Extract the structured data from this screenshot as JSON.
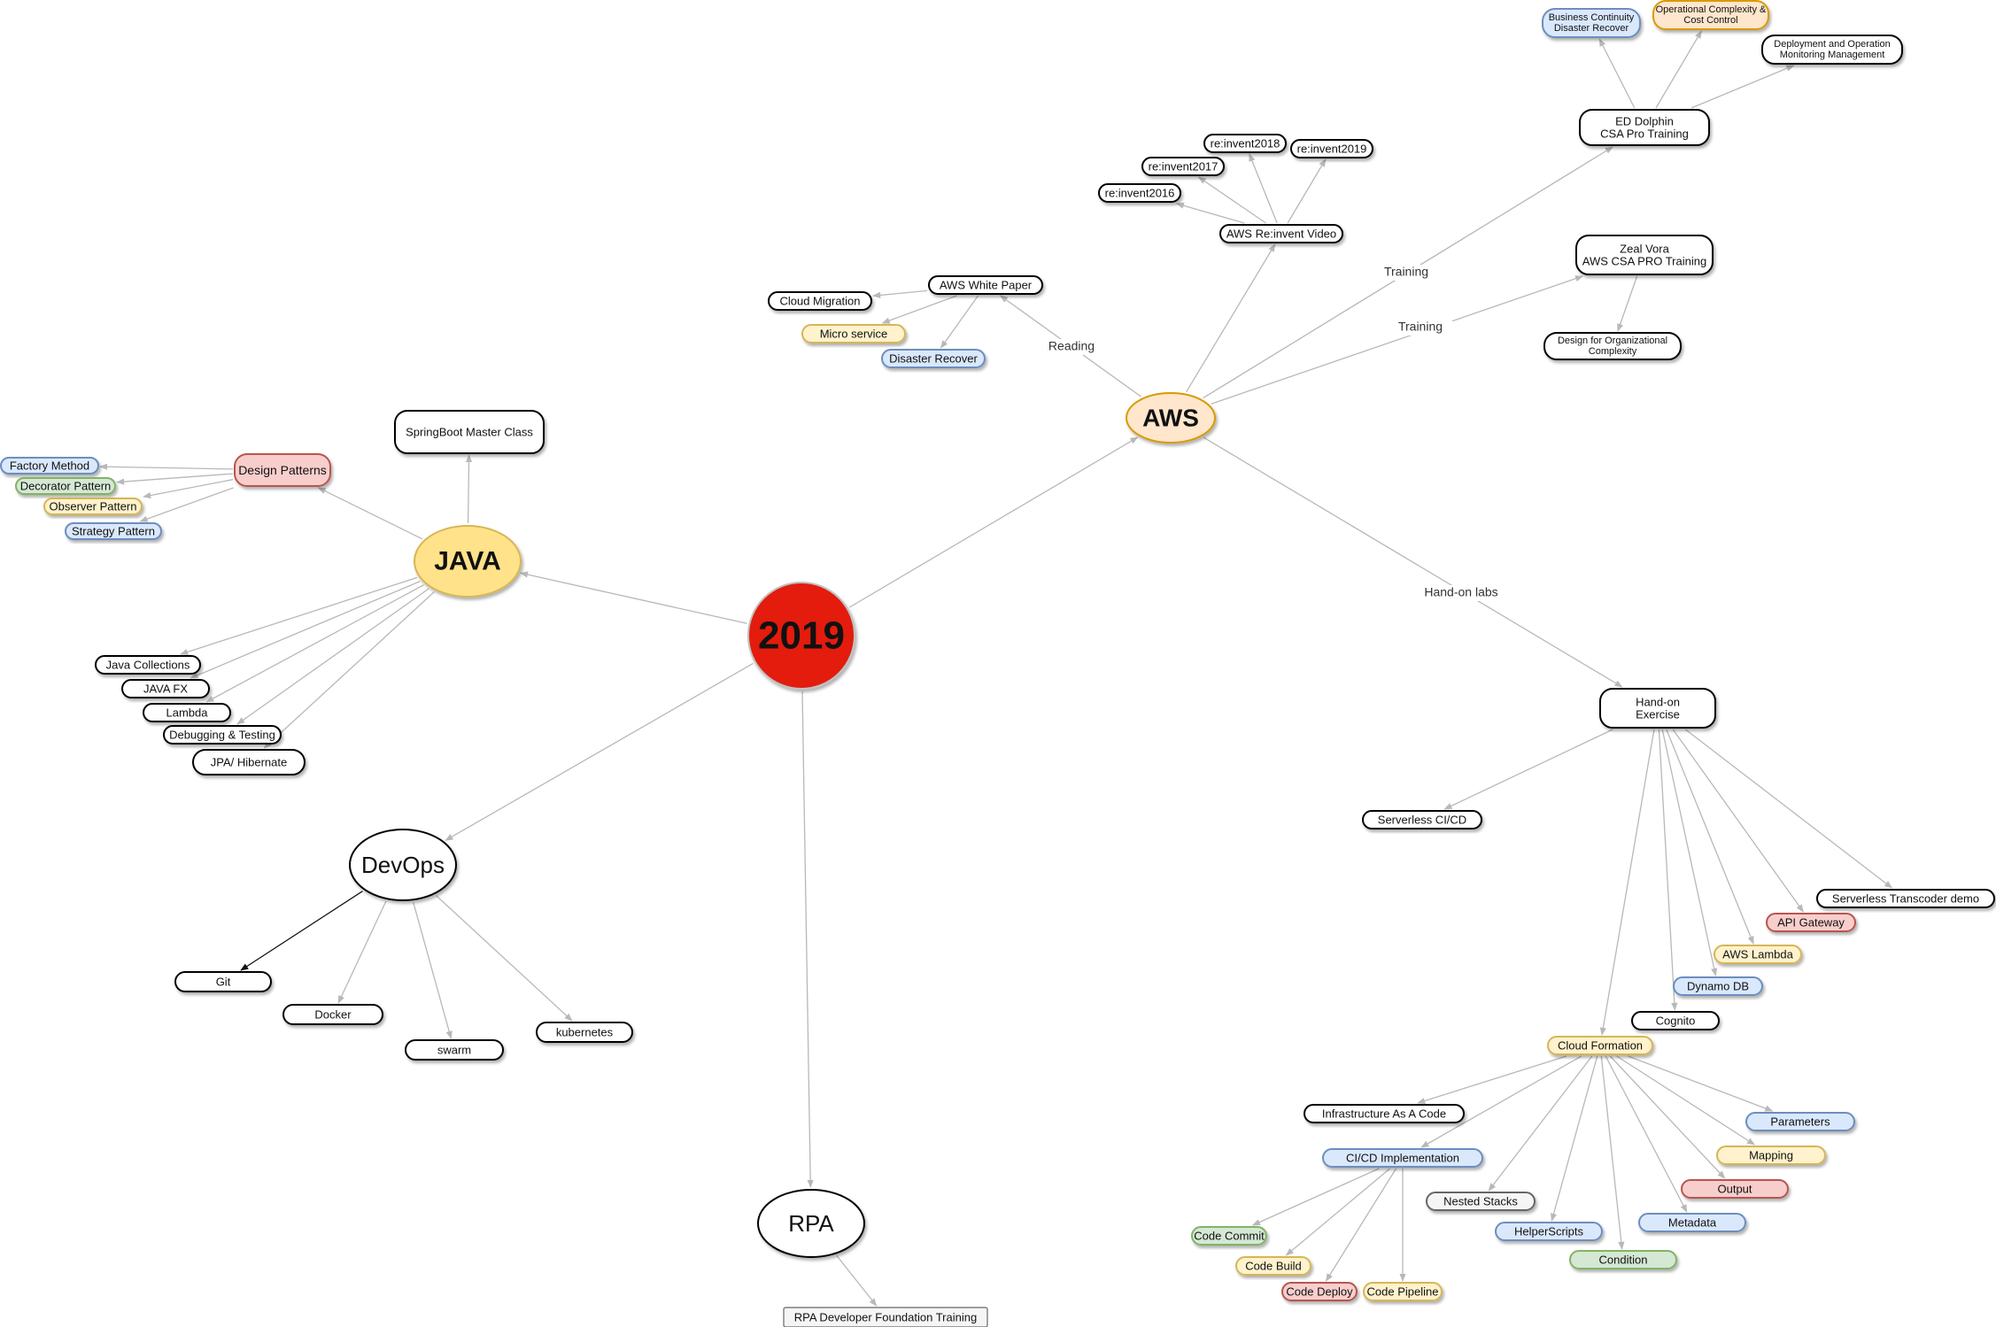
{
  "styles": {
    "plain": {
      "fill": "#ffffff",
      "stroke": "#000000"
    },
    "blue": {
      "fill": "#dae8fc",
      "stroke": "#6c8ebf"
    },
    "yellow": {
      "fill": "#fff2cc",
      "stroke": "#d6b656"
    },
    "green": {
      "fill": "#d5e8d4",
      "stroke": "#82b366"
    },
    "red": {
      "fill": "#f8cecc",
      "stroke": "#b85450"
    },
    "orange": {
      "fill": "#ffe6cc",
      "stroke": "#d79b00"
    },
    "grey": {
      "fill": "#f5f5f5",
      "stroke": "#666666"
    },
    "java": {
      "fill": "#ffe28a",
      "stroke": "#d6b656"
    },
    "center": {
      "fill": "#e31a0f",
      "stroke": "#c0c0c0",
      "text": "#ffffff"
    }
  },
  "nodes": [
    {
      "id": "y2019",
      "label": "2019",
      "style": "center"
    },
    {
      "id": "java",
      "label": "JAVA",
      "style": "java"
    },
    {
      "id": "aws",
      "label": "AWS",
      "style": "orange"
    },
    {
      "id": "devops",
      "label": "DevOps",
      "style": "plain"
    },
    {
      "id": "rpa",
      "label": "RPA",
      "style": "plain"
    },
    {
      "id": "rpa_found",
      "label": "RPA Developer Foundation Training",
      "style": "grey"
    },
    {
      "id": "git",
      "label": "Git",
      "style": "plain"
    },
    {
      "id": "docker",
      "label": "Docker",
      "style": "plain"
    },
    {
      "id": "swarm",
      "label": "swarm",
      "style": "plain"
    },
    {
      "id": "k8s",
      "label": "kubernetes",
      "style": "plain"
    },
    {
      "id": "springboot",
      "label": "SpringBoot Master Class",
      "style": "plain"
    },
    {
      "id": "design",
      "label": "Design Patterns",
      "style": "red"
    },
    {
      "id": "factory",
      "label": "Factory Method",
      "style": "blue"
    },
    {
      "id": "decorator",
      "label": "Decorator Pattern",
      "style": "green"
    },
    {
      "id": "observer",
      "label": "Observer Pattern",
      "style": "yellow"
    },
    {
      "id": "strategy",
      "label": "Strategy Pattern",
      "style": "blue"
    },
    {
      "id": "jcoll",
      "label": "Java Collections",
      "style": "plain"
    },
    {
      "id": "javafx",
      "label": "JAVA FX",
      "style": "plain"
    },
    {
      "id": "lambda",
      "label": "Lambda",
      "style": "plain"
    },
    {
      "id": "debug",
      "label": "Debugging & Testing",
      "style": "plain"
    },
    {
      "id": "jpa",
      "label": "JPA/ Hibernate",
      "style": "plain"
    },
    {
      "id": "whitepaper",
      "label": "AWS White Paper",
      "style": "plain"
    },
    {
      "id": "cloudmig",
      "label": "Cloud Migration",
      "style": "plain"
    },
    {
      "id": "microsvc",
      "label": "Micro service",
      "style": "yellow"
    },
    {
      "id": "disrec",
      "label": "Disaster Recover",
      "style": "blue"
    },
    {
      "id": "reinvent",
      "label": "AWS Re:invent Video",
      "style": "plain"
    },
    {
      "id": "ri2016",
      "label": "re:invent2016",
      "style": "plain"
    },
    {
      "id": "ri2017",
      "label": "re:invent2017",
      "style": "plain"
    },
    {
      "id": "ri2018",
      "label": "re:invent2018",
      "style": "plain"
    },
    {
      "id": "ri2019",
      "label": "re:invent2019",
      "style": "plain"
    },
    {
      "id": "eddolphin",
      "label": "ED Dolphin\nCSA Pro Training",
      "style": "plain"
    },
    {
      "id": "bcdr",
      "label": "Business Continuity\nDisaster Recover",
      "style": "blue"
    },
    {
      "id": "opcx",
      "label": "Operational Complexity &\nCost Control",
      "style": "orange"
    },
    {
      "id": "deploy",
      "label": "Deployment and Operation\nMonitoring Management",
      "style": "plain"
    },
    {
      "id": "zeal",
      "label": "Zeal Vora\nAWS CSA PRO Training",
      "style": "plain"
    },
    {
      "id": "orgcx",
      "label": "Design for Organizational\nComplexity",
      "style": "plain"
    },
    {
      "id": "handon",
      "label": "Hand-on\nExercise",
      "style": "plain"
    },
    {
      "id": "slcicd",
      "label": "Serverless CI/CD",
      "style": "plain"
    },
    {
      "id": "sltrans",
      "label": "Serverless Transcoder demo",
      "style": "plain"
    },
    {
      "id": "apigw",
      "label": "API Gateway",
      "style": "red"
    },
    {
      "id": "awslambda",
      "label": "AWS Lambda",
      "style": "yellow"
    },
    {
      "id": "dynamo",
      "label": "Dynamo DB",
      "style": "blue"
    },
    {
      "id": "cognito",
      "label": "Cognito",
      "style": "plain"
    },
    {
      "id": "cfn",
      "label": "Cloud Formation",
      "style": "yellow"
    },
    {
      "id": "iac",
      "label": "Infrastructure As A Code",
      "style": "plain"
    },
    {
      "id": "cicd",
      "label": "CI/CD Implementation",
      "style": "blue"
    },
    {
      "id": "nested",
      "label": "Nested Stacks",
      "style": "grey"
    },
    {
      "id": "helper",
      "label": "HelperScripts",
      "style": "blue"
    },
    {
      "id": "condition",
      "label": "Condition",
      "style": "green"
    },
    {
      "id": "metadata",
      "label": "Metadata",
      "style": "blue"
    },
    {
      "id": "output",
      "label": "Output",
      "style": "red"
    },
    {
      "id": "mapping",
      "label": "Mapping",
      "style": "yellow"
    },
    {
      "id": "params",
      "label": "Parameters",
      "style": "blue"
    },
    {
      "id": "ccommit",
      "label": "Code Commit",
      "style": "green"
    },
    {
      "id": "cbuild",
      "label": "Code Build",
      "style": "yellow"
    },
    {
      "id": "cdeploy",
      "label": "Code Deploy",
      "style": "red"
    },
    {
      "id": "cpipe",
      "label": "Code Pipeline",
      "style": "yellow"
    }
  ],
  "edges": [
    {
      "from": "y2019",
      "to": "java"
    },
    {
      "from": "y2019",
      "to": "aws"
    },
    {
      "from": "y2019",
      "to": "devops"
    },
    {
      "from": "y2019",
      "to": "rpa"
    },
    {
      "from": "rpa",
      "to": "rpa_found"
    },
    {
      "from": "devops",
      "to": "git",
      "style": "dark"
    },
    {
      "from": "devops",
      "to": "docker"
    },
    {
      "from": "devops",
      "to": "swarm"
    },
    {
      "from": "devops",
      "to": "k8s"
    },
    {
      "from": "java",
      "to": "springboot"
    },
    {
      "from": "java",
      "to": "design"
    },
    {
      "from": "design",
      "to": "factory"
    },
    {
      "from": "design",
      "to": "decorator"
    },
    {
      "from": "design",
      "to": "observer"
    },
    {
      "from": "design",
      "to": "strategy"
    },
    {
      "from": "java",
      "to": "jcoll"
    },
    {
      "from": "java",
      "to": "javafx"
    },
    {
      "from": "java",
      "to": "lambda"
    },
    {
      "from": "java",
      "to": "debug"
    },
    {
      "from": "java",
      "to": "jpa"
    },
    {
      "from": "aws",
      "to": "whitepaper",
      "label": "Reading"
    },
    {
      "from": "whitepaper",
      "to": "cloudmig"
    },
    {
      "from": "whitepaper",
      "to": "microsvc"
    },
    {
      "from": "whitepaper",
      "to": "disrec"
    },
    {
      "from": "aws",
      "to": "reinvent"
    },
    {
      "from": "reinvent",
      "to": "ri2016"
    },
    {
      "from": "reinvent",
      "to": "ri2017"
    },
    {
      "from": "reinvent",
      "to": "ri2018"
    },
    {
      "from": "reinvent",
      "to": "ri2019"
    },
    {
      "from": "aws",
      "to": "eddolphin",
      "label": "Training"
    },
    {
      "from": "eddolphin",
      "to": "bcdr"
    },
    {
      "from": "eddolphin",
      "to": "opcx"
    },
    {
      "from": "eddolphin",
      "to": "deploy"
    },
    {
      "from": "aws",
      "to": "zeal",
      "label": "Training"
    },
    {
      "from": "zeal",
      "to": "orgcx"
    },
    {
      "from": "aws",
      "to": "handon",
      "label": "Hand-on labs"
    },
    {
      "from": "handon",
      "to": "slcicd"
    },
    {
      "from": "handon",
      "to": "sltrans"
    },
    {
      "from": "handon",
      "to": "apigw"
    },
    {
      "from": "handon",
      "to": "awslambda"
    },
    {
      "from": "handon",
      "to": "dynamo"
    },
    {
      "from": "handon",
      "to": "cognito"
    },
    {
      "from": "handon",
      "to": "cfn"
    },
    {
      "from": "cfn",
      "to": "iac"
    },
    {
      "from": "cfn",
      "to": "cicd"
    },
    {
      "from": "cfn",
      "to": "nested"
    },
    {
      "from": "cfn",
      "to": "helper"
    },
    {
      "from": "cfn",
      "to": "condition"
    },
    {
      "from": "cfn",
      "to": "metadata"
    },
    {
      "from": "cfn",
      "to": "output"
    },
    {
      "from": "cfn",
      "to": "mapping"
    },
    {
      "from": "cfn",
      "to": "params"
    },
    {
      "from": "cicd",
      "to": "ccommit"
    },
    {
      "from": "cicd",
      "to": "cbuild"
    },
    {
      "from": "cicd",
      "to": "cdeploy"
    },
    {
      "from": "cicd",
      "to": "cpipe"
    }
  ]
}
